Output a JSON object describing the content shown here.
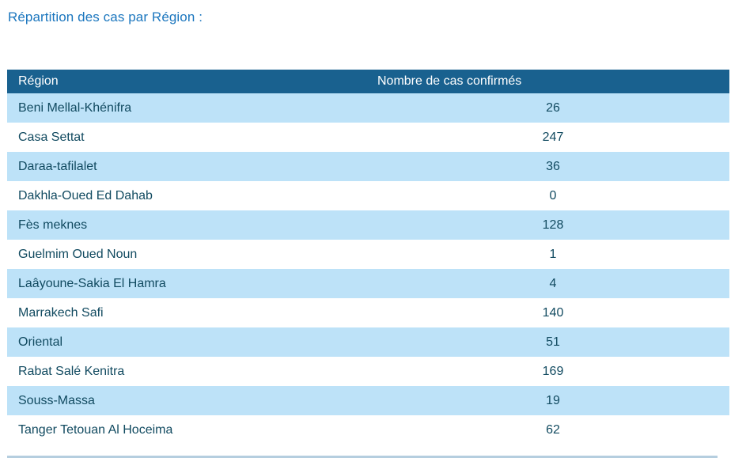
{
  "title": "Répartition des cas par Région :",
  "table": {
    "columns": [
      "Région",
      "Nombre de cas confirmés"
    ],
    "rows": [
      {
        "region": "Beni Mellal-Khénifra",
        "cases": "26"
      },
      {
        "region": "Casa Settat",
        "cases": "247"
      },
      {
        "region": "Daraa-tafilalet",
        "cases": "36"
      },
      {
        "region": "Dakhla-Oued Ed Dahab",
        "cases": "0"
      },
      {
        "region": "Fès meknes",
        "cases": "128"
      },
      {
        "region": "Guelmim Oued Noun",
        "cases": "1"
      },
      {
        "region": "Laâyoune-Sakia El Hamra",
        "cases": "4"
      },
      {
        "region": "Marrakech Safi",
        "cases": "140"
      },
      {
        "region": "Oriental",
        "cases": "51"
      },
      {
        "region": "Rabat Salé Kenitra",
        "cases": "169"
      },
      {
        "region": "Souss-Massa",
        "cases": "19"
      },
      {
        "region": "Tanger Tetouan Al Hoceima",
        "cases": "62"
      }
    ]
  },
  "colors": {
    "title_text": "#1B76BE",
    "header_background": "#19618F",
    "header_text": "#FFFFFF",
    "row_background": "#FFFFFF",
    "row_alt_background": "#BDE2F8",
    "cell_text": "#114A60",
    "bottom_edge": "#B5CEDF"
  },
  "chart_data": {
    "type": "table",
    "title": "Répartition des cas par Région",
    "columns": [
      "Région",
      "Nombre de cas confirmés"
    ],
    "categories": [
      "Beni Mellal-Khénifra",
      "Casa Settat",
      "Daraa-tafilalet",
      "Dakhla-Oued Ed Dahab",
      "Fès meknes",
      "Guelmim Oued Noun",
      "Laâyoune-Sakia El Hamra",
      "Marrakech Safi",
      "Oriental",
      "Rabat Salé Kenitra",
      "Souss-Massa",
      "Tanger Tetouan Al Hoceima"
    ],
    "values": [
      26,
      247,
      36,
      0,
      128,
      1,
      4,
      140,
      51,
      169,
      19,
      62
    ]
  }
}
